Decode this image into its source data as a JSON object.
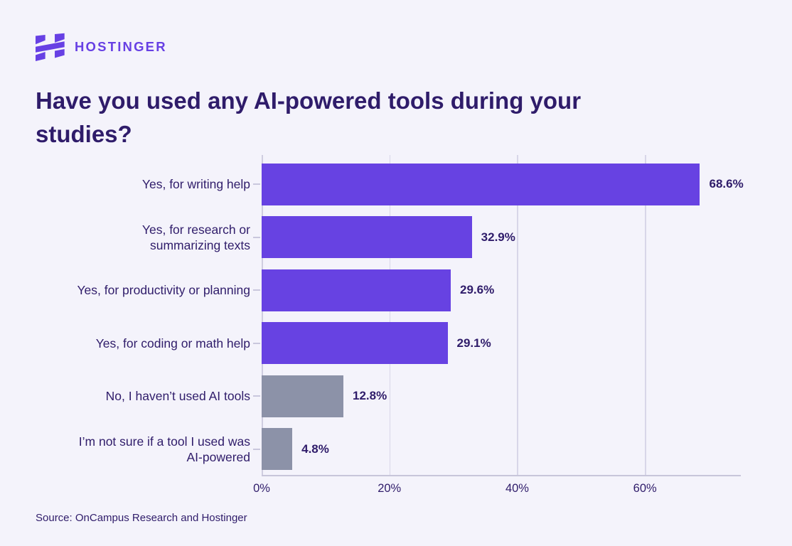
{
  "brand": {
    "wordmark": "HOSTINGER",
    "logo_color": "#6740E4"
  },
  "title": "Have you used any AI-powered tools during your\nstudies?",
  "source": "Source: OnCampus Research and Hostinger",
  "colors": {
    "background": "#F4F3FB",
    "text_dark": "#2F1C6A",
    "bar_purple": "#6742E2",
    "bar_gray": "#8C92A8",
    "gridline": "#D8D6E8",
    "axis_line": "#C7C5DA"
  },
  "chart_data": {
    "type": "bar",
    "orientation": "horizontal",
    "title": "Have you used any AI-powered tools during your studies?",
    "categories": [
      "Yes, for writing help",
      "Yes, for research or\nsummarizing texts",
      "Yes, for productivity or planning",
      "Yes, for coding or math help",
      "No, I haven’t used AI tools",
      "I’m not sure if a tool I used was\nAI-powered"
    ],
    "values": [
      68.6,
      32.9,
      29.6,
      29.1,
      12.8,
      4.8
    ],
    "value_labels": [
      "68.6%",
      "32.9%",
      "29.6%",
      "29.1%",
      "12.8%",
      "4.8%"
    ],
    "bar_colors": [
      "#6742E2",
      "#6742E2",
      "#6742E2",
      "#6742E2",
      "#8C92A8",
      "#8C92A8"
    ],
    "xlabel": "",
    "ylabel": "",
    "xlim": [
      0,
      75
    ],
    "x_ticks": [
      0,
      20,
      40,
      60
    ],
    "x_tick_labels": [
      "0%",
      "20%",
      "40%",
      "60%"
    ],
    "grid": true,
    "legend": false
  }
}
